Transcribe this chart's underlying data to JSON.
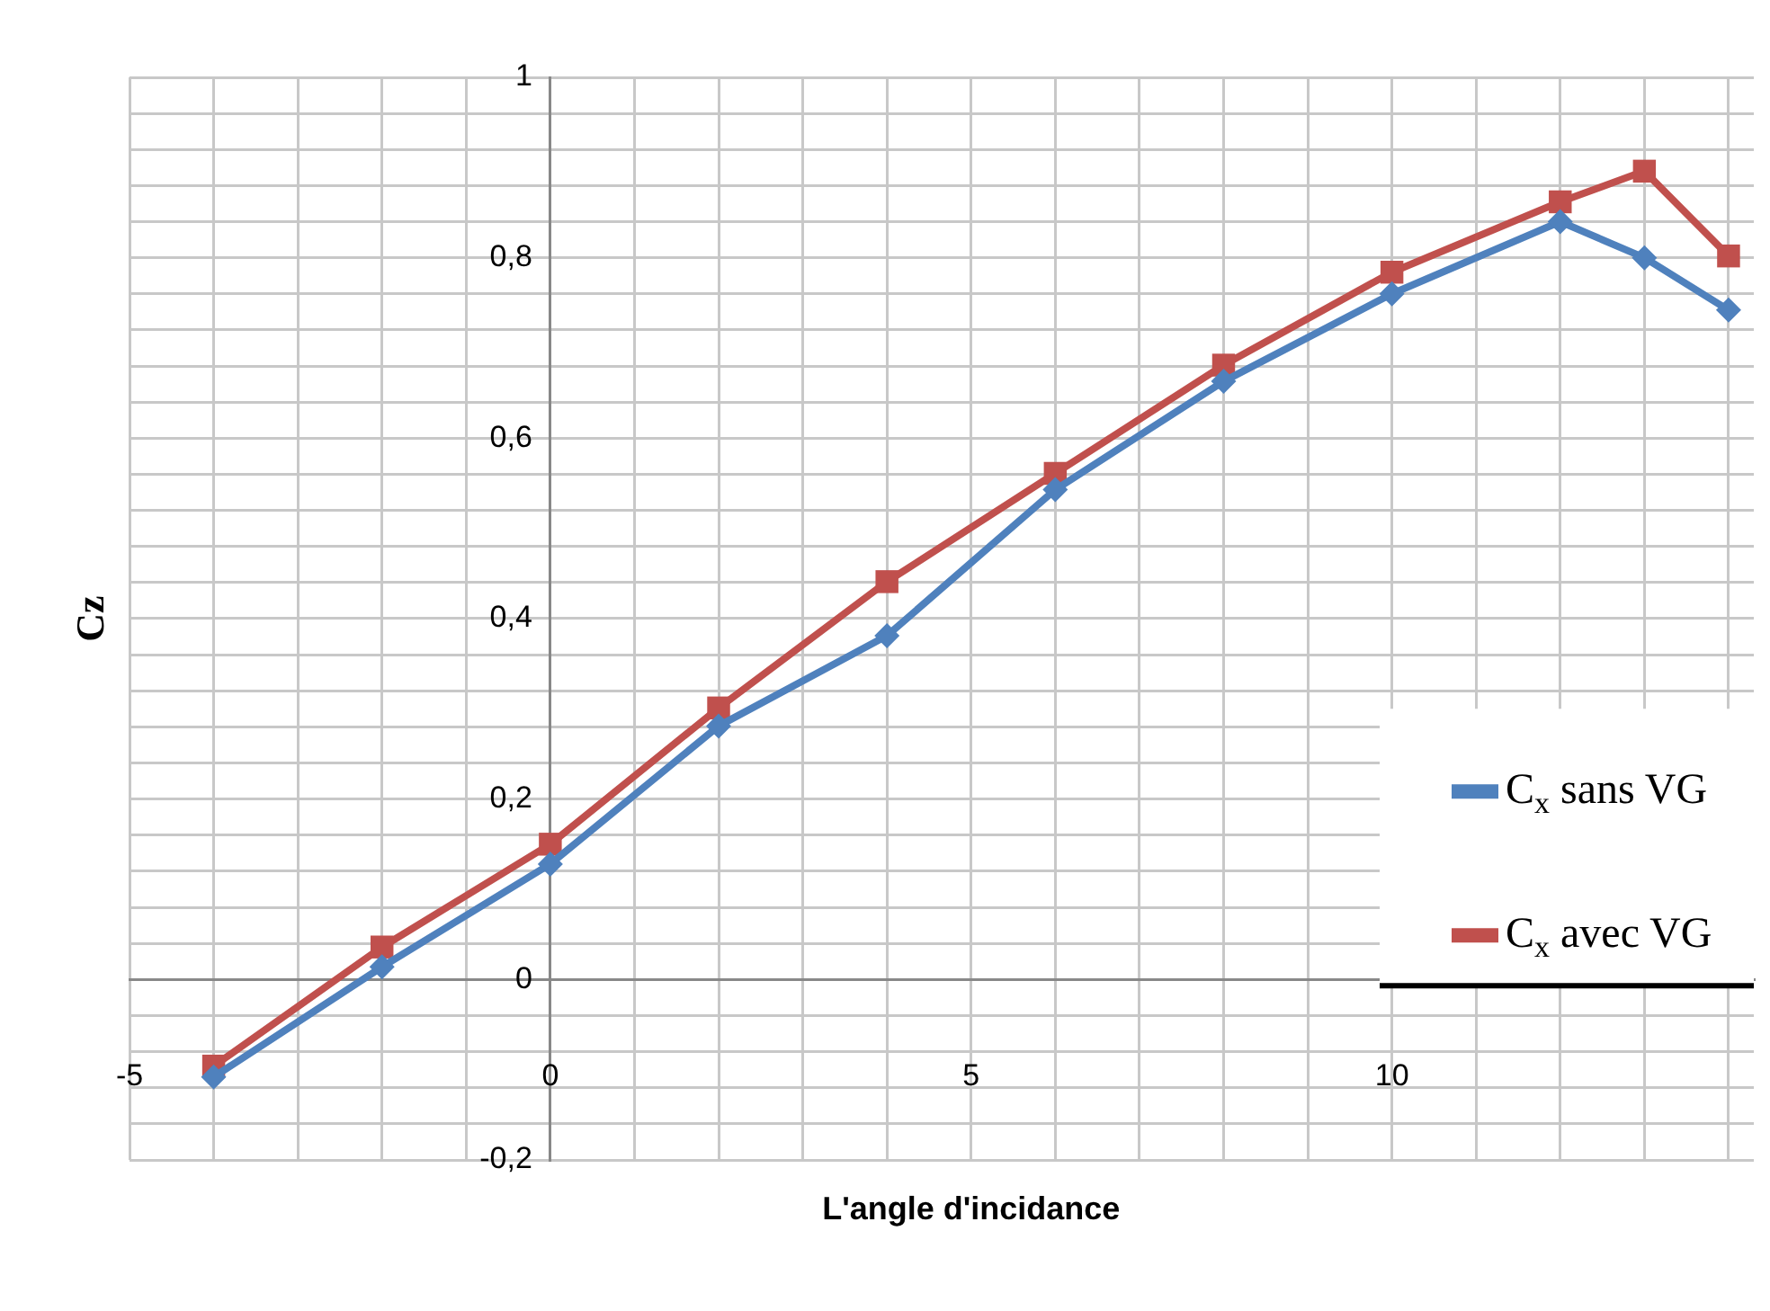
{
  "chart_data": {
    "type": "line",
    "xlabel": "L'angle d'incidance",
    "ylabel": "Cz",
    "x": [
      -4,
      -2,
      0,
      2,
      4,
      6,
      8,
      10,
      12,
      13,
      14
    ],
    "series": [
      {
        "name": "C$_{x}$ sans VG",
        "color": "#4f81bd",
        "marker": "diamond",
        "values": [
          -0.108,
          0.014,
          0.128,
          0.281,
          0.381,
          0.543,
          0.663,
          0.76,
          0.84,
          0.8,
          0.742
        ]
      },
      {
        "name": "C$_{x}$ avec VG",
        "color": "#c0504d",
        "marker": "square",
        "values": [
          -0.096,
          0.036,
          0.15,
          0.301,
          0.441,
          0.561,
          0.681,
          0.784,
          0.862,
          0.896,
          0.802
        ]
      }
    ],
    "xlim": [
      -5,
      14.3
    ],
    "xticks": [
      -5,
      {
        "value": -4,
        "label": null
      },
      {
        "value": -3,
        "label": null
      },
      {
        "value": -2,
        "label": null
      },
      {
        "value": -1,
        "label": null
      },
      0,
      {
        "value": 1,
        "label": null
      },
      {
        "value": 2,
        "label": null
      },
      {
        "value": 3,
        "label": null
      },
      {
        "value": 4,
        "label": null
      },
      5,
      {
        "value": 6,
        "label": null
      },
      {
        "value": 7,
        "label": null
      },
      {
        "value": 8,
        "label": null
      },
      {
        "value": 9,
        "label": null
      },
      10,
      {
        "value": 11,
        "label": null
      },
      {
        "value": 12,
        "label": null
      },
      {
        "value": 13,
        "label": null
      },
      {
        "value": 14,
        "label": null
      }
    ],
    "ylim": [
      -0.2,
      1
    ],
    "yticks": [
      {
        "value": -0.2,
        "label": "-0,2"
      },
      {
        "value": -0.16,
        "label": null
      },
      {
        "value": -0.12,
        "label": null
      },
      {
        "value": -0.08,
        "label": null
      },
      {
        "value": -0.04,
        "label": null
      },
      0,
      {
        "value": 0.04,
        "label": null
      },
      {
        "value": 0.08,
        "label": null
      },
      {
        "value": 0.12,
        "label": null
      },
      {
        "value": 0.16,
        "label": null
      },
      {
        "value": 0.2,
        "label": "0,2"
      },
      {
        "value": 0.24,
        "label": null
      },
      {
        "value": 0.28,
        "label": null
      },
      {
        "value": 0.32,
        "label": null
      },
      {
        "value": 0.36,
        "label": null
      },
      {
        "value": 0.4,
        "label": "0,4"
      },
      {
        "value": 0.44,
        "label": null
      },
      {
        "value": 0.48,
        "label": null
      },
      {
        "value": 0.52,
        "label": null
      },
      {
        "value": 0.56,
        "label": null
      },
      {
        "value": 0.6,
        "label": "0,6"
      },
      {
        "value": 0.64,
        "label": null
      },
      {
        "value": 0.68,
        "label": null
      },
      {
        "value": 0.72,
        "label": null
      },
      {
        "value": 0.76,
        "label": null
      },
      {
        "value": 0.8,
        "label": "0,8"
      },
      {
        "value": 0.84,
        "label": null
      },
      {
        "value": 0.88,
        "label": null
      },
      {
        "value": 0.92,
        "label": null
      },
      {
        "value": 0.96,
        "label": null
      },
      1
    ],
    "grid": true,
    "legend": "right",
    "line_style": "solid"
  }
}
